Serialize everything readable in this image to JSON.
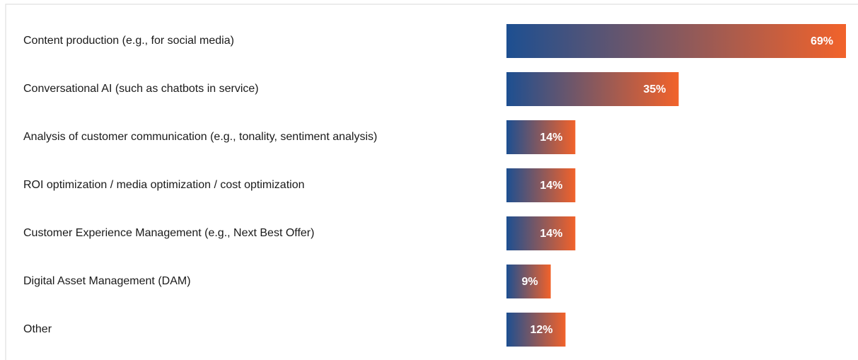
{
  "chart_data": {
    "type": "barh",
    "categories": [
      "Content production (e.g., for social media)",
      "Conversational AI (such as chatbots in service)",
      "Analysis of customer communication (e.g., tonality, sentiment analysis)",
      "ROI optimization / media optimization / cost optimization",
      "Customer Experience Management (e.g., Next Best Offer)",
      "Digital Asset Management (DAM)",
      "Other"
    ],
    "values": [
      69,
      35,
      14,
      14,
      14,
      9,
      12
    ],
    "value_labels": [
      "69%",
      "35%",
      "14%",
      "14%",
      "14%",
      "9%",
      "12%"
    ],
    "gradient": [
      "#1d4f91",
      "#f2622a"
    ],
    "label_color": "#ffffff",
    "xlim": [
      0,
      69
    ]
  }
}
